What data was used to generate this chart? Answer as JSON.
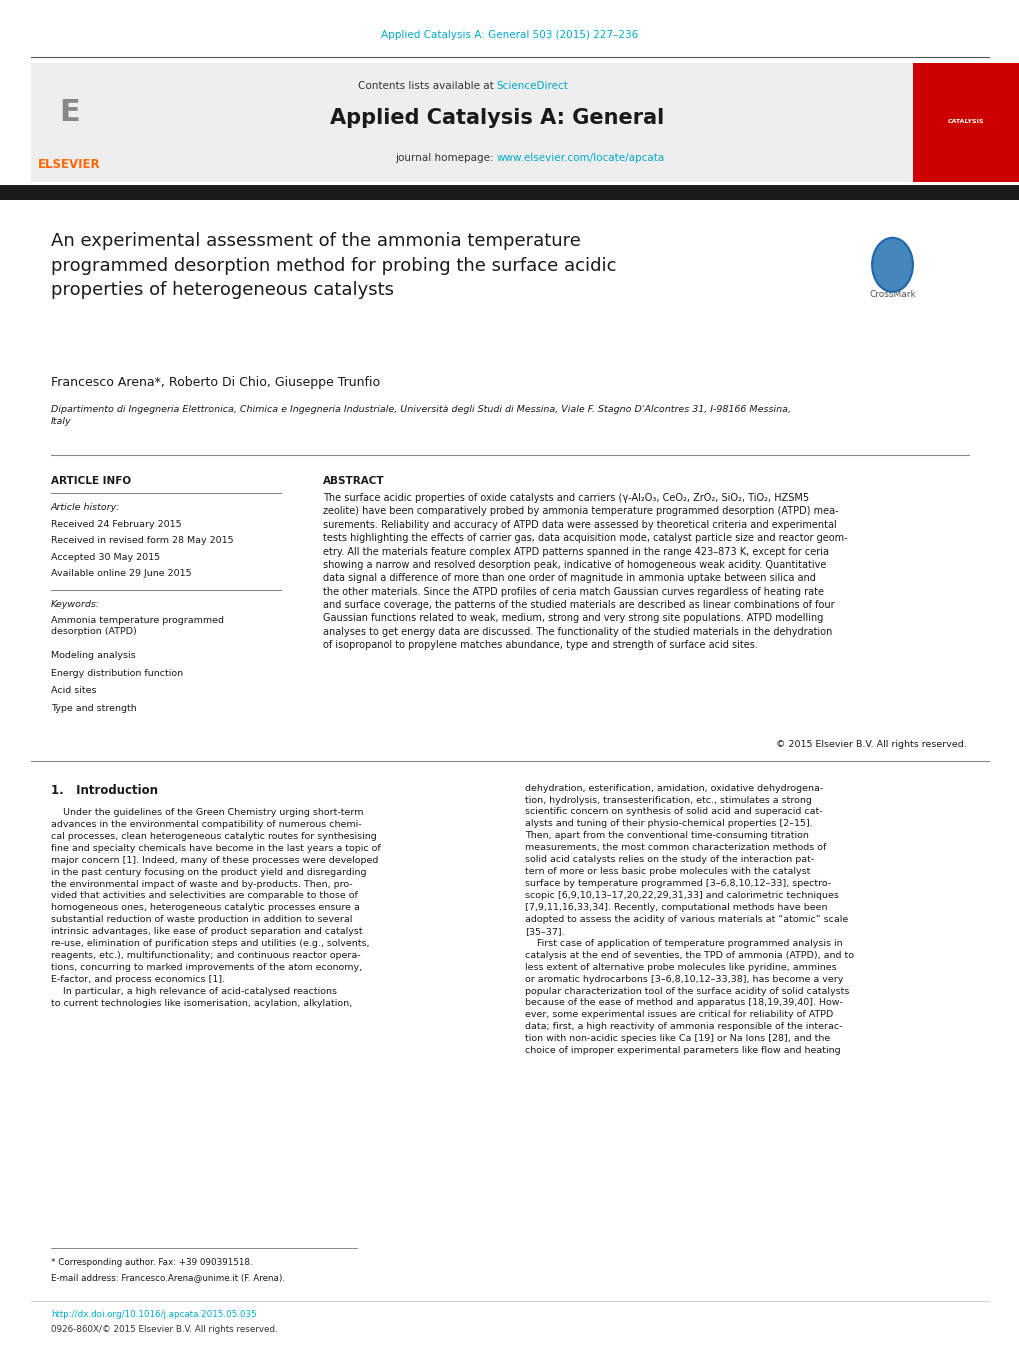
{
  "page_width": 10.2,
  "page_height": 13.51,
  "background_color": "#ffffff",
  "top_citation": "Applied Catalysis A: General 503 (2015) 227–236",
  "top_citation_color": "#00AACC",
  "journal_title": "Applied Catalysis A: General",
  "contents_color": "#333333",
  "sciencedirect_color": "#00AACC",
  "homepage_color": "#00AACC",
  "elsevier_color": "#FF6600",
  "black_bar_color": "#1a1a1a",
  "article_title": "An experimental assessment of the ammonia temperature\nprogrammed desorption method for probing the surface acidic\nproperties of heterogeneous catalysts",
  "authors": "Francesco Arena*, Roberto Di Chio, Giuseppe Trunfio",
  "affiliation": "Dipartimento di Ingegneria Elettronica, Chimica e Ingegneria Industriale, Università degli Studi di Messina, Viale F. Stagno D'Alcontres 31, I-98166 Messina,\nItaly",
  "article_info_header": "ARTICLE INFO",
  "abstract_header": "ABSTRACT",
  "article_history_label": "Article history:",
  "received": "Received 24 February 2015",
  "received_revised": "Received in revised form 28 May 2015",
  "accepted": "Accepted 30 May 2015",
  "available": "Available online 29 June 2015",
  "keywords_label": "Keywords:",
  "keywords": [
    "Ammonia temperature programmed\ndesorption (ATPD)",
    "Modeling analysis",
    "Energy distribution function",
    "Acid sites",
    "Type and strength"
  ],
  "abstract_text": "The surface acidic properties of oxide catalysts and carriers (γ-Al₂O₃, CeO₂, ZrO₂, SiO₂, TiO₂, HZSM5\nzeolite) have been comparatively probed by ammonia temperature programmed desorption (ATPD) mea-\nsurements. Reliability and accuracy of ATPD data were assessed by theoretical criteria and experimental\ntests highlighting the effects of carrier gas, data acquisition mode, catalyst particle size and reactor geom-\netry. All the materials feature complex ATPD patterns spanned in the range 423–873 K, except for ceria\nshowing a narrow and resolved desorption peak, indicative of homogeneous weak acidity. Quantitative\ndata signal a difference of more than one order of magnitude in ammonia uptake between silica and\nthe other materials. Since the ATPD profiles of ceria match Gaussian curves regardless of heating rate\nand surface coverage, the patterns of the studied materials are described as linear combinations of four\nGaussian functions related to weak, medium, strong and very strong site populations. ATPD modelling\nanalyses to get energy data are discussed. The functionality of the studied materials in the dehydration\nof isopropanol to propylene matches abundance, type and strength of surface acid sites.",
  "copyright": "© 2015 Elsevier B.V. All rights reserved.",
  "section1_title": "1.   Introduction",
  "intro_left": "    Under the guidelines of the Green Chemistry urging short-term\nadvances in the environmental compatibility of numerous chemi-\ncal processes, clean heterogeneous catalytic routes for synthesising\nfine and specialty chemicals have become in the last years a topic of\nmajor concern [1]. Indeed, many of these processes were developed\nin the past century focusing on the product yield and disregarding\nthe environmental impact of waste and by-products. Then, pro-\nvided that activities and selectivities are comparable to those of\nhomogeneous ones, heterogeneous catalytic processes ensure a\nsubstantial reduction of waste production in addition to several\nintrinsic advantages, like ease of product separation and catalyst\nre-use, elimination of purification steps and utilities (e.g., solvents,\nreagents, etc.), multifunctionality; and continuous reactor opera-\ntions, concurring to marked improvements of the atom economy,\nE-factor, and process economics [1].\n    In particular, a high relevance of acid-catalysed reactions\nto current technologies like isomerisation, acylation, alkylation,",
  "intro_right": "dehydration, esterification, amidation, oxidative dehydrogena-\ntion, hydrolysis, transesterification, etc., stimulates a strong\nscientific concern on synthesis of solid acid and superacid cat-\nalysts and tuning of their physio-chemical properties [2–15].\nThen, apart from the conventional time-consuming titration\nmeasurements, the most common characterization methods of\nsolid acid catalysts relies on the study of the interaction pat-\ntern of more or less basic probe molecules with the catalyst\nsurface by temperature programmed [3–6,8,10,12–33], spectro-\nscopic [6,9,10,13–17,20,22,29,31,33] and calorimetric techniques\n[7,9,11,16,33,34]. Recently, computational methods have been\nadopted to assess the acidity of various materials at “atomic” scale\n[35–37].\n    First case of application of temperature programmed analysis in\ncatalysis at the end of seventies, the TPD of ammonia (ATPD), and to\nless extent of alternative probe molecules like pyridine, ammines\nor aromatic hydrocarbons [3–6,8,10,12–33,38], has become a very\npopular characterization tool of the surface acidity of solid catalysts\nbecause of the ease of method and apparatus [18,19,39,40]. How-\never, some experimental issues are critical for reliability of ATPD\ndata; first, a high reactivity of ammonia responsible of the interac-\ntion with non-acidic species like Ca [19] or Na Ions [28], and the\nchoice of improper experimental parameters like flow and heating",
  "footnote_line1": "* Corresponding author. Fax: +39 090391518.",
  "footnote_line2": "E-mail address: Francesco.Arena@unime.it (F. Arena).",
  "doi_line": "http://dx.doi.org/10.1016/j.apcata.2015.05.035",
  "issn_line": "0926-860X/© 2015 Elsevier B.V. All rights reserved."
}
